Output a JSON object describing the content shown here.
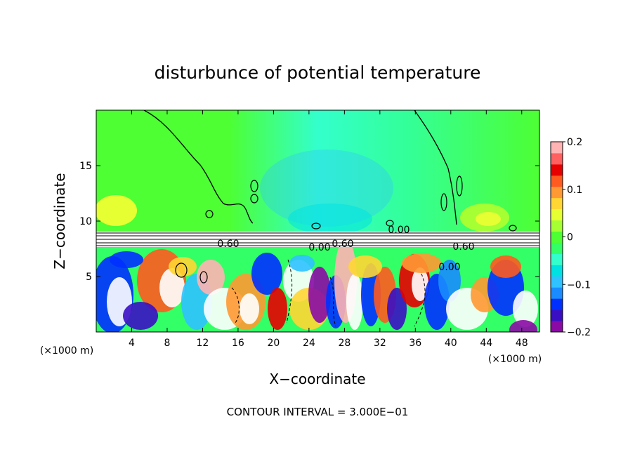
{
  "chart_data": {
    "type": "heatmap",
    "title": "disturbunce of potential temperature",
    "xlabel": "X−coordinate",
    "ylabel": "Z−coordinate",
    "x_unit": "(×1000 m)",
    "x_unit_right": "(×1000 m)",
    "xlim": [
      0,
      50
    ],
    "ylim": [
      0,
      20
    ],
    "xticks": [
      4,
      8,
      12,
      16,
      20,
      24,
      28,
      32,
      36,
      40,
      44,
      48
    ],
    "xticklabels": [
      "4",
      "8",
      "12",
      "16",
      "20",
      "24",
      "28",
      "32",
      "36",
      "40",
      "44",
      "48"
    ],
    "yticks": [
      5,
      10,
      15
    ],
    "yticklabels": [
      "5",
      "10",
      "15"
    ],
    "colorbar": {
      "vmin": -0.2,
      "vmax": 0.2,
      "ticks": [
        0.2,
        0.1,
        0,
        -0.1,
        -0.2
      ],
      "ticklabels": [
        "0.2",
        "0.1",
        "0",
        "−0.1",
        "−0.2"
      ],
      "colors": [
        "#8b0aa5",
        "#3a0fc4",
        "#0030ff",
        "#1a8cff",
        "#2fc2ff",
        "#00e1e1",
        "#33ffcc",
        "#33ff66",
        "#4dff33",
        "#a6ff33",
        "#e6ff33",
        "#ffd633",
        "#ff9933",
        "#ff5a1f",
        "#e60000",
        "#ff6060",
        "#ffb3b3"
      ]
    },
    "contour_labels": [
      "0.60",
      "0.00",
      "0.60",
      "0.00",
      "0.60",
      "0.00"
    ],
    "footer": "CONTOUR INTERVAL = 3.000E−01"
  }
}
